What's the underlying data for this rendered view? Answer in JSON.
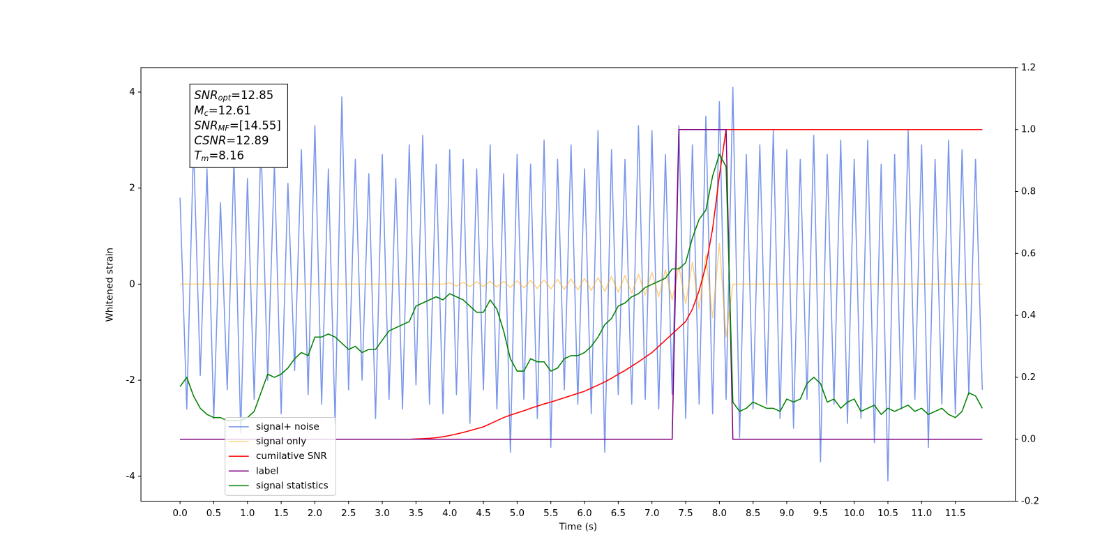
{
  "chart_data": {
    "type": "line",
    "xlabel": "Time (s)",
    "ylabel": "Whitened strain",
    "xlim": [
      -0.58,
      12.39
    ],
    "ylim": [
      -4.52,
      4.51
    ],
    "y2lim": [
      -0.2,
      1.2
    ],
    "xticks": [
      {
        "value": 0,
        "label": "0.0"
      },
      0.5,
      {
        "value": 1,
        "label": "1.0"
      },
      1.5,
      {
        "value": 2,
        "label": "2.0"
      },
      2.5,
      {
        "value": 3,
        "label": "3.0"
      },
      3.5,
      {
        "value": 4,
        "label": "4.0"
      },
      4.5,
      {
        "value": 5,
        "label": "5.0"
      },
      5.5,
      {
        "value": 6,
        "label": "6.0"
      },
      6.5,
      {
        "value": 7,
        "label": "7.0"
      },
      7.5,
      {
        "value": 8,
        "label": "8.0"
      },
      8.5,
      {
        "value": 9,
        "label": "9.0"
      },
      9.5,
      {
        "value": 10,
        "label": "10.0"
      },
      10.5,
      {
        "value": 11,
        "label": "11.0"
      },
      11.5
    ],
    "yticks": [
      -4,
      -2,
      0,
      2,
      4
    ],
    "y2ticks": [
      -0.2,
      {
        "value": 0,
        "label": "0.0"
      },
      0.2,
      0.4,
      0.6,
      0.8,
      {
        "value": 1,
        "label": "1.0"
      },
      1.2
    ],
    "legend": "lower left",
    "x": [
      0,
      0.1,
      0.2,
      0.3,
      0.4,
      0.5,
      0.6,
      0.7,
      0.8,
      0.9,
      1,
      1.1,
      1.2,
      1.3,
      1.4,
      1.5,
      1.6,
      1.7,
      1.8,
      1.9,
      2,
      2.1,
      2.2,
      2.3,
      2.4,
      2.5,
      2.6,
      2.7,
      2.8,
      2.9,
      3,
      3.1,
      3.2,
      3.3,
      3.4,
      3.5,
      3.6,
      3.7,
      3.8,
      3.9,
      4,
      4.1,
      4.2,
      4.3,
      4.4,
      4.5,
      4.6,
      4.7,
      4.8,
      4.9,
      5,
      5.1,
      5.2,
      5.3,
      5.4,
      5.5,
      5.6,
      5.7,
      5.8,
      5.9,
      6,
      6.1,
      6.2,
      6.3,
      6.4,
      6.5,
      6.6,
      6.7,
      6.8,
      6.9,
      7,
      7.1,
      7.2,
      7.3,
      7.4,
      7.5,
      7.6,
      7.7,
      7.8,
      7.9,
      8,
      8.1,
      8.2,
      8.3,
      8.4,
      8.5,
      8.6,
      8.7,
      8.8,
      8.9,
      9,
      9.1,
      9.2,
      9.3,
      9.4,
      9.5,
      9.6,
      9.7,
      9.8,
      9.9,
      10,
      10.1,
      10.2,
      10.3,
      10.4,
      10.5,
      10.6,
      10.7,
      10.8,
      10.9,
      11,
      11.1,
      11.2,
      11.3,
      11.4,
      11.5,
      11.6,
      11.7,
      11.8,
      11.9
    ],
    "series": [
      {
        "name": "signal+ noise",
        "color": "#4169e1",
        "alpha": 0.7,
        "values": [
          1.8,
          -2.6,
          2.9,
          -1.9,
          2.4,
          -2.8,
          1.7,
          -2.2,
          2.6,
          -3.1,
          2.2,
          -2.4,
          3.0,
          -2.0,
          2.5,
          -2.7,
          2.1,
          -1.8,
          2.8,
          -2.3,
          3.3,
          -2.5,
          2.4,
          -2.9,
          3.9,
          -2.2,
          2.6,
          -2.0,
          2.3,
          -2.8,
          2.7,
          -2.4,
          2.2,
          -2.6,
          2.9,
          -2.1,
          3.1,
          -2.5,
          2.5,
          -2.7,
          2.8,
          -2.3,
          2.6,
          -2.9,
          2.4,
          -2.2,
          2.9,
          -2.6,
          2.3,
          -3.5,
          2.7,
          -2.4,
          2.5,
          -2.8,
          3.0,
          -3.4,
          2.6,
          -2.2,
          2.9,
          -2.5,
          2.4,
          -2.7,
          3.2,
          -3.5,
          2.8,
          -2.3,
          2.6,
          -2.5,
          3.3,
          -2.4,
          3.2,
          -2.6,
          2.7,
          -2.3,
          3.3,
          -2.8,
          2.9,
          -2.5,
          3.5,
          -2.7,
          3.8,
          -2.4,
          4.1,
          -3.2,
          2.7,
          -2.6,
          2.9,
          -2.5,
          3.2,
          -2.8,
          2.8,
          -3.0,
          2.6,
          -2.4,
          3.1,
          -3.7,
          2.7,
          -2.5,
          3.0,
          -2.9,
          2.6,
          -2.8,
          3.0,
          -3.3,
          2.5,
          -4.1,
          2.7,
          -2.6,
          3.2,
          -2.4,
          2.9,
          -3.4,
          2.6,
          -2.5,
          3.0,
          -2.7,
          2.8,
          -2.3,
          2.6,
          -2.2
        ]
      },
      {
        "name": "signal only",
        "color": "#ffa500",
        "alpha": 0.5,
        "values": [
          0,
          0,
          0,
          0,
          0,
          0,
          0,
          0,
          0,
          0,
          0,
          0,
          0,
          0,
          0,
          0,
          0,
          0,
          0,
          0,
          0,
          0,
          0,
          0,
          0,
          0,
          0,
          0,
          0,
          0,
          0,
          0,
          0,
          0,
          0,
          0,
          0,
          0,
          0,
          0,
          0.03,
          -0.04,
          0.04,
          -0.05,
          0.05,
          -0.05,
          0.06,
          -0.06,
          0.06,
          -0.07,
          0.07,
          -0.08,
          0.08,
          -0.09,
          0.09,
          -0.1,
          0.1,
          -0.11,
          0.11,
          -0.12,
          0.12,
          -0.13,
          0.14,
          -0.15,
          0.16,
          -0.17,
          0.18,
          -0.19,
          0.21,
          -0.23,
          0.25,
          -0.27,
          0.3,
          -0.33,
          0.37,
          -0.41,
          0.46,
          -0.52,
          0.6,
          -0.7,
          0.85,
          -1.1,
          0,
          0,
          0,
          0,
          0,
          0,
          0,
          0,
          0,
          0,
          0,
          0,
          0,
          0,
          0,
          0,
          0,
          0,
          0,
          0,
          0,
          0,
          0,
          0,
          0,
          0,
          0,
          0,
          0,
          0,
          0,
          0,
          0,
          0,
          0,
          0,
          0,
          0
        ]
      },
      {
        "name": "cumilative SNR",
        "color": "#ff0000",
        "alpha": 1,
        "axis": "y2",
        "values": [
          0,
          0,
          0,
          0,
          0,
          0,
          0,
          0,
          0,
          0,
          0,
          0,
          0,
          0,
          0,
          0,
          0,
          0,
          0,
          0,
          0,
          0,
          0,
          0,
          0,
          0,
          0,
          0,
          0,
          0,
          0,
          0,
          0,
          0,
          0,
          0.001,
          0.002,
          0.003,
          0.005,
          0.008,
          0.012,
          0.017,
          0.022,
          0.028,
          0.034,
          0.04,
          0.05,
          0.06,
          0.07,
          0.078,
          0.085,
          0.092,
          0.1,
          0.107,
          0.114,
          0.12,
          0.127,
          0.134,
          0.141,
          0.148,
          0.155,
          0.165,
          0.175,
          0.185,
          0.197,
          0.21,
          0.222,
          0.236,
          0.25,
          0.265,
          0.28,
          0.3,
          0.32,
          0.34,
          0.36,
          0.38,
          0.42,
          0.48,
          0.56,
          0.68,
          0.85,
          1,
          1,
          1,
          1,
          1,
          1,
          1,
          1,
          1,
          1,
          1,
          1,
          1,
          1,
          1,
          1,
          1,
          1,
          1,
          1,
          1,
          1,
          1,
          1,
          1,
          1,
          1,
          1,
          1,
          1,
          1,
          1,
          1,
          1,
          1,
          1,
          1,
          1,
          1
        ]
      },
      {
        "name": "label",
        "color": "#800080",
        "alpha": 1,
        "axis": "y2",
        "values": [
          0,
          0,
          0,
          0,
          0,
          0,
          0,
          0,
          0,
          0,
          0,
          0,
          0,
          0,
          0,
          0,
          0,
          0,
          0,
          0,
          0,
          0,
          0,
          0,
          0,
          0,
          0,
          0,
          0,
          0,
          0,
          0,
          0,
          0,
          0,
          0,
          0,
          0,
          0,
          0,
          0,
          0,
          0,
          0,
          0,
          0,
          0,
          0,
          0,
          0,
          0,
          0,
          0,
          0,
          0,
          0,
          0,
          0,
          0,
          0,
          0,
          0,
          0,
          0,
          0,
          0,
          0,
          0,
          0,
          0,
          0,
          0,
          0,
          0,
          1,
          1,
          1,
          1,
          1,
          1,
          1,
          1,
          0,
          0,
          0,
          0,
          0,
          0,
          0,
          0,
          0,
          0,
          0,
          0,
          0,
          0,
          0,
          0,
          0,
          0,
          0,
          0,
          0,
          0,
          0,
          0,
          0,
          0,
          0,
          0,
          0,
          0,
          0,
          0,
          0,
          0,
          0,
          0,
          0,
          0
        ]
      },
      {
        "name": "signal statistics",
        "color": "#008000",
        "alpha": 1,
        "axis": "y2",
        "values": [
          0.17,
          0.2,
          0.14,
          0.1,
          0.08,
          0.07,
          0.07,
          0.06,
          0.06,
          0.06,
          0.07,
          0.09,
          0.15,
          0.21,
          0.2,
          0.21,
          0.23,
          0.26,
          0.28,
          0.27,
          0.33,
          0.33,
          0.34,
          0.33,
          0.31,
          0.29,
          0.3,
          0.28,
          0.29,
          0.29,
          0.32,
          0.35,
          0.36,
          0.37,
          0.38,
          0.43,
          0.44,
          0.45,
          0.46,
          0.45,
          0.47,
          0.46,
          0.45,
          0.43,
          0.41,
          0.41,
          0.45,
          0.42,
          0.35,
          0.26,
          0.22,
          0.22,
          0.26,
          0.25,
          0.25,
          0.22,
          0.23,
          0.26,
          0.27,
          0.27,
          0.28,
          0.3,
          0.33,
          0.37,
          0.39,
          0.43,
          0.44,
          0.46,
          0.47,
          0.49,
          0.5,
          0.51,
          0.52,
          0.55,
          0.55,
          0.57,
          0.65,
          0.71,
          0.74,
          0.85,
          0.92,
          0.88,
          0.12,
          0.09,
          0.1,
          0.12,
          0.11,
          0.1,
          0.1,
          0.09,
          0.13,
          0.12,
          0.13,
          0.18,
          0.2,
          0.18,
          0.12,
          0.13,
          0.1,
          0.12,
          0.13,
          0.09,
          0.1,
          0.11,
          0.08,
          0.1,
          0.09,
          0.1,
          0.11,
          0.09,
          0.1,
          0.08,
          0.09,
          0.1,
          0.08,
          0.07,
          0.09,
          0.15,
          0.14,
          0.1
        ]
      }
    ],
    "annotation": [
      {
        "symbol": "SNR",
        "subscript": "opt",
        "text": "=12.85"
      },
      {
        "symbol": "M",
        "subscript": "c",
        "text": "=12.61"
      },
      {
        "symbol": "SNR",
        "subscript": "MF",
        "text": "=[14.55]"
      },
      {
        "symbol": "CSNR",
        "text": "=12.89"
      },
      {
        "symbol": "T",
        "subscript": "m",
        "text": "=8.16"
      }
    ]
  }
}
